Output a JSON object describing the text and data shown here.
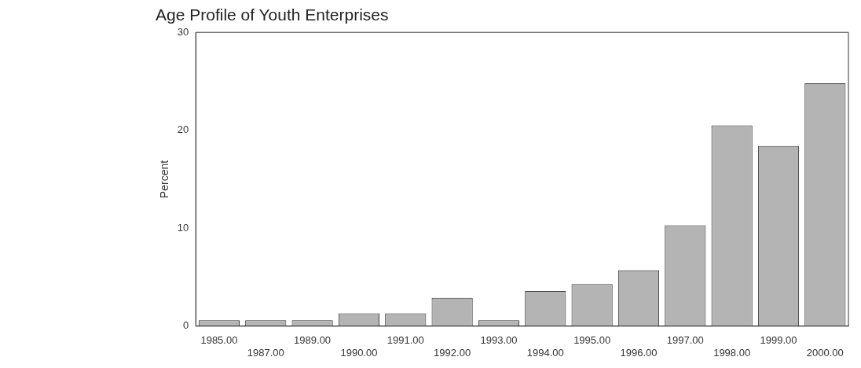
{
  "chart_data": {
    "type": "bar",
    "title": "Age Profile of Youth Enterprises",
    "ylabel": "Percent",
    "categories": [
      "1985.00",
      "1987.00",
      "1989.00",
      "1990.00",
      "1991.00",
      "1992.00",
      "1993.00",
      "1994.00",
      "1995.00",
      "1996.00",
      "1997.00",
      "1998.00",
      "1999.00",
      "2000.00"
    ],
    "values": [
      0.6,
      0.6,
      0.6,
      1.3,
      1.3,
      2.9,
      0.6,
      3.6,
      4.3,
      5.7,
      10.3,
      20.5,
      18.4,
      24.8
    ],
    "color": "#b4b4b4",
    "ylim": [
      0,
      30
    ],
    "yticks": [
      0,
      10,
      20,
      30
    ],
    "grid": false,
    "legend": false
  }
}
